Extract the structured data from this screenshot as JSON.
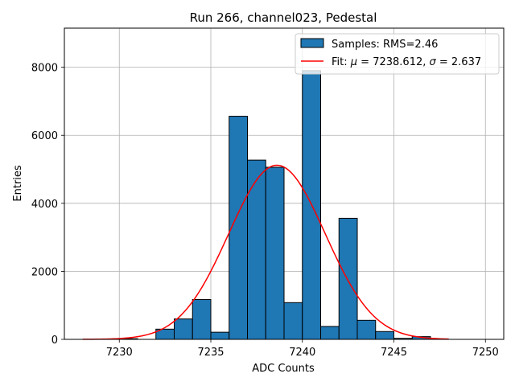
{
  "chart_data": {
    "type": "bar",
    "title": "Run 266, channel023, Pedestal",
    "xlabel": "ADC Counts",
    "ylabel": "Entries",
    "xlim": [
      7227,
      7251
    ],
    "ylim": [
      0,
      9150
    ],
    "xticks": [
      7230,
      7235,
      7240,
      7245,
      7250
    ],
    "yticks": [
      0,
      2000,
      4000,
      6000,
      8000
    ],
    "grid": true,
    "legend_position": "top-right",
    "histogram": {
      "name": "Samples: RMS=2.46",
      "color": "#1f77b4",
      "edgecolor": "#000000",
      "bin_edges": [
        7230,
        7231,
        7232,
        7233,
        7234,
        7235,
        7236,
        7237,
        7238,
        7239,
        7240,
        7241,
        7242,
        7243,
        7244,
        7245,
        7246,
        7247
      ],
      "counts": [
        20,
        0,
        300,
        600,
        1170,
        210,
        6560,
        5270,
        5060,
        1080,
        7900,
        380,
        3560,
        560,
        230,
        30,
        80
      ]
    },
    "fit": {
      "name_prefix": "Fit: ",
      "mu_symbol": "μ",
      "mu_text": " = 7238.612, ",
      "sigma_symbol": "σ",
      "sigma_text": " = 2.637",
      "color": "#ff0000",
      "mu": 7238.612,
      "sigma": 2.637,
      "amplitude": 5120,
      "x_range": [
        7228,
        7248
      ]
    }
  }
}
